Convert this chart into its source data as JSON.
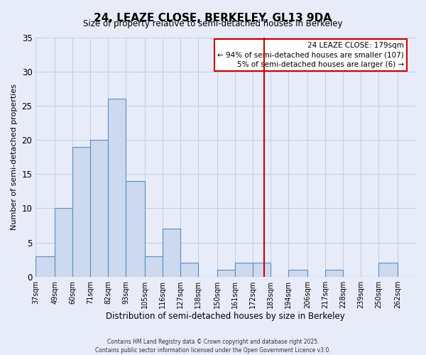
{
  "title": "24, LEAZE CLOSE, BERKELEY, GL13 9DA",
  "subtitle": "Size of property relative to semi-detached houses in Berkeley",
  "xlabel": "Distribution of semi-detached houses by size in Berkeley",
  "ylabel": "Number of semi-detached properties",
  "bar_labels": [
    "37sqm",
    "49sqm",
    "60sqm",
    "71sqm",
    "82sqm",
    "93sqm",
    "105sqm",
    "116sqm",
    "127sqm",
    "138sqm",
    "150sqm",
    "161sqm",
    "172sqm",
    "183sqm",
    "194sqm",
    "206sqm",
    "217sqm",
    "228sqm",
    "239sqm",
    "250sqm",
    "262sqm"
  ],
  "bar_heights": [
    3,
    10,
    19,
    20,
    26,
    14,
    3,
    7,
    2,
    0,
    1,
    2,
    2,
    0,
    1,
    0,
    1,
    0,
    0,
    2,
    0
  ],
  "bar_color": "#ccd9ee",
  "bar_edge_color": "#5b8ec4",
  "ylim": [
    0,
    35
  ],
  "yticks": [
    0,
    5,
    10,
    15,
    20,
    25,
    30,
    35
  ],
  "vline_x": 179,
  "vline_color": "#cc0000",
  "annotation_title": "24 LEAZE CLOSE: 179sqm",
  "annotation_line1": "← 94% of semi-detached houses are smaller (107)",
  "annotation_line2": "5% of semi-detached houses are larger (6) →",
  "footer_line1": "Contains HM Land Registry data © Crown copyright and database right 2025.",
  "footer_line2": "Contains public sector information licensed under the Open Government Licence v3.0.",
  "background_color": "#e8ecf8",
  "grid_color": "#c5cfe8",
  "bin_edges": [
    37,
    49,
    60,
    71,
    82,
    93,
    105,
    116,
    127,
    138,
    150,
    161,
    172,
    183,
    194,
    206,
    217,
    228,
    239,
    250,
    262,
    273
  ]
}
